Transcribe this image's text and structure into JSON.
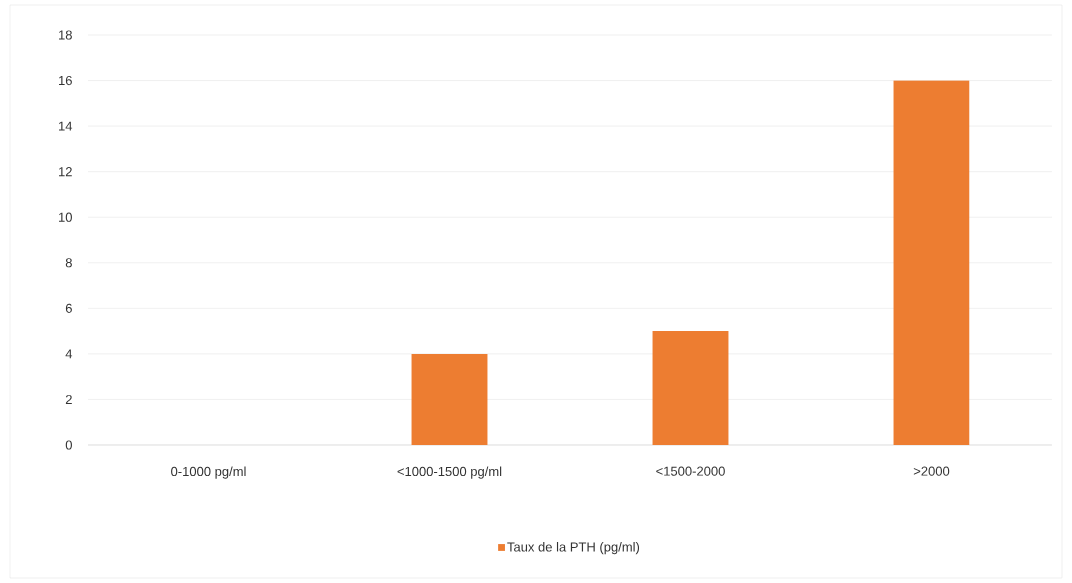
{
  "chart_data": {
    "type": "bar",
    "categories": [
      "0-1000 pg/ml",
      "<1000-1500 pg/ml",
      "<1500-2000",
      ">2000"
    ],
    "series": [
      {
        "name": "Taux de la PTH (pg/ml)",
        "color": "#ed7d31",
        "values": [
          0,
          4,
          5,
          16
        ]
      }
    ],
    "ylim": [
      0,
      18
    ],
    "yticks": [
      0,
      2,
      4,
      6,
      8,
      10,
      12,
      14,
      16,
      18
    ],
    "grid": "y",
    "legend": "bottom"
  }
}
